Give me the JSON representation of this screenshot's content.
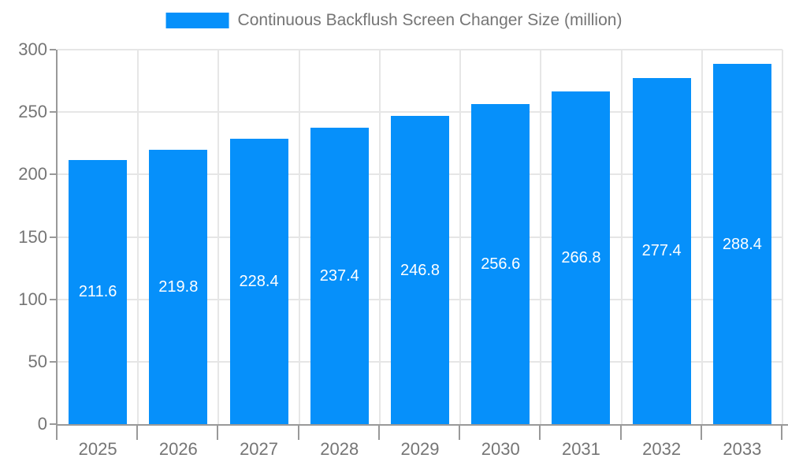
{
  "legend": {
    "label": "Continuous Backflush Screen Changer Size (million)"
  },
  "chart_data": {
    "type": "bar",
    "title": "Continuous Backflush Screen Changer Size (million)",
    "categories": [
      "2025",
      "2026",
      "2027",
      "2028",
      "2029",
      "2030",
      "2031",
      "2032",
      "2033"
    ],
    "values": [
      211.6,
      219.8,
      228.4,
      237.4,
      246.8,
      256.6,
      266.8,
      277.4,
      288.4
    ],
    "xlabel": "",
    "ylabel": "",
    "ylim": [
      0,
      300
    ],
    "yticks": [
      0,
      50,
      100,
      150,
      200,
      250,
      300
    ],
    "grid": true,
    "legend_position": "top",
    "bar_color": "#0690fa",
    "value_labels_shown": true,
    "value_label_color": "#ffffff",
    "axis_color": "#999999",
    "gridline_color": "#e6e6e6",
    "label_color": "#757575"
  }
}
